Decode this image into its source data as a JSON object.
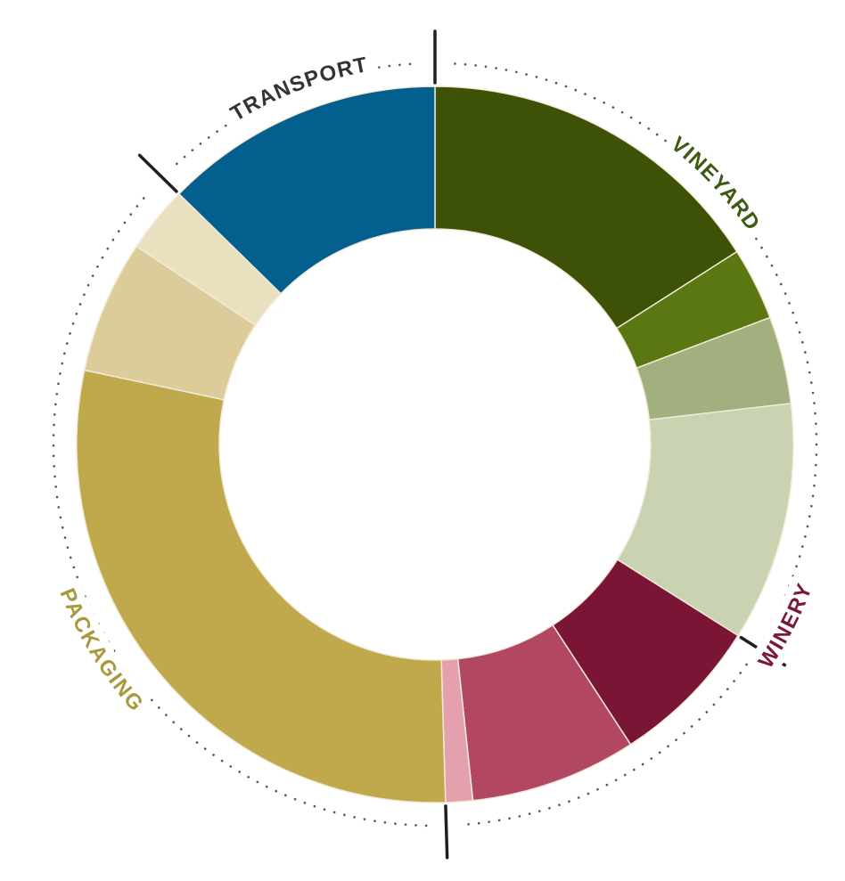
{
  "chart_data": {
    "type": "donut",
    "unit": "%",
    "groups": [
      {
        "name": "VINEYARD",
        "color": "#3d5a12"
      },
      {
        "name": "WINERY",
        "color": "#7a1838"
      },
      {
        "name": "PACKAGING",
        "color": "#a89a3c"
      },
      {
        "name": "TRANSPORT",
        "color": "#333333"
      }
    ],
    "segments": [
      {
        "group": "VINEYARD",
        "value": 17.0,
        "color": "#3d5107"
      },
      {
        "group": "VINEYARD",
        "value": 3.5,
        "color": "#5b7712"
      },
      {
        "group": "VINEYARD",
        "value": 4.2,
        "color": "#a1b07e"
      },
      {
        "group": "VINEYARD",
        "value": 11.5,
        "color": "#c9d3b2"
      },
      {
        "group": "WINERY",
        "value": 7.3,
        "color": "#7a1535"
      },
      {
        "group": "WINERY",
        "value": 8.0,
        "color": "#b14762"
      },
      {
        "group": "WINERY",
        "value": 1.3,
        "color": "#e5a0ae"
      },
      {
        "group": "PACKAGING",
        "value": 30.7,
        "color": "#c0a84c"
      },
      {
        "group": "PACKAGING",
        "value": 6.4,
        "color": "#dbcc99"
      },
      {
        "group": "PACKAGING",
        "value": 3.2,
        "color": "#e9e0bf"
      },
      {
        "group": "TRANSPORT",
        "value": 13.5,
        "color": "#035f8d"
      }
    ]
  }
}
